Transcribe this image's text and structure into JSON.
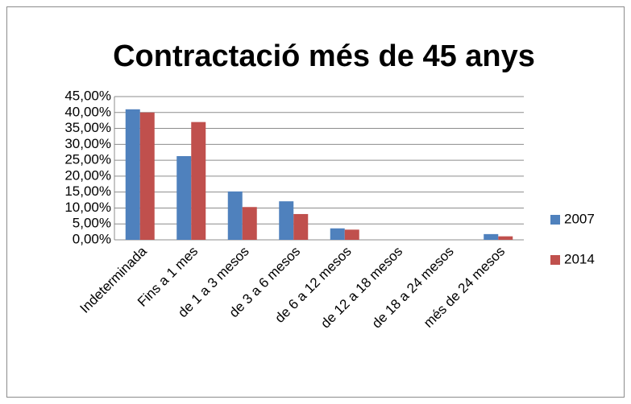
{
  "chart_data": {
    "type": "bar",
    "title": "Contractació més de 45 anys",
    "categories": [
      "Indeterminada",
      "Fins a 1 mes",
      "de 1 a 3 mesos",
      "de 3 a 6 mesos",
      "de 6 a 12 mesos",
      "de 12 a 18 mesos",
      "de 18 a 24 mesos",
      "més de 24 mesos"
    ],
    "series": [
      {
        "name": "2007",
        "color": "#4f81bd",
        "values": [
          41,
          26.3,
          15.2,
          12.1,
          3.6,
          0,
          0,
          1.8
        ]
      },
      {
        "name": "2014",
        "color": "#c0504d",
        "values": [
          40,
          37,
          10.3,
          8.1,
          3.2,
          0,
          0,
          1.1
        ]
      }
    ],
    "ylim": [
      0,
      45
    ],
    "yticks": [
      {
        "value": 0,
        "label": "0,00%"
      },
      {
        "value": 5,
        "label": "5,00%"
      },
      {
        "value": 10,
        "label": "10,00%"
      },
      {
        "value": 15,
        "label": "15,00%"
      },
      {
        "value": 20,
        "label": "20,00%"
      },
      {
        "value": 25,
        "label": "25,00%"
      },
      {
        "value": 30,
        "label": "30,00%"
      },
      {
        "value": 35,
        "label": "35,00%"
      },
      {
        "value": 40,
        "label": "40,00%"
      },
      {
        "value": 45,
        "label": "45,00%"
      }
    ],
    "grid": true,
    "legend": "right"
  }
}
